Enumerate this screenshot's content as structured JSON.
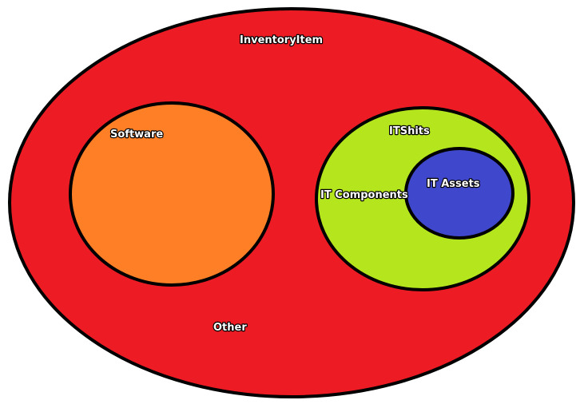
{
  "diagram": {
    "sets": [
      {
        "id": "inventory_item",
        "label": "InventoryItem",
        "color": "#ed1c24"
      },
      {
        "id": "software",
        "label": "Software",
        "color": "#ff7f27"
      },
      {
        "id": "itshits",
        "label": "ITShits",
        "color": "#b5e61d"
      },
      {
        "id": "it_assets",
        "label": "IT Assets",
        "color": "#3f48cc"
      }
    ],
    "other_label": "Other",
    "it_components_label": "IT Components",
    "outline_color": "#000000"
  }
}
